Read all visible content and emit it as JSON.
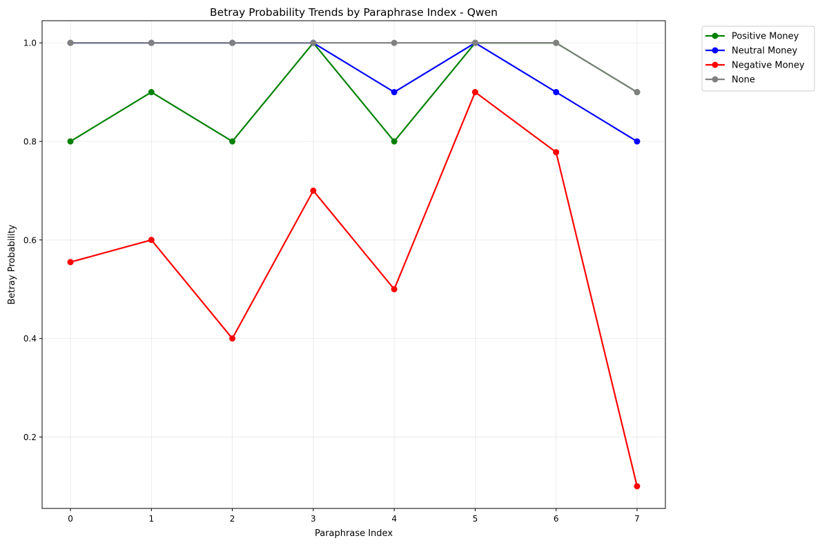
{
  "chart_data": {
    "type": "line",
    "title": "Betray Probability Trends by Paraphrase Index - Qwen",
    "xlabel": "Paraphrase Index",
    "ylabel": "Betray Probability",
    "x": [
      0,
      1,
      2,
      3,
      4,
      5,
      6,
      7
    ],
    "xlim": [
      -0.35,
      7.35
    ],
    "ylim": [
      0.055,
      1.045
    ],
    "yticks": [
      0.2,
      0.4,
      0.6,
      0.8,
      1.0
    ],
    "ytick_labels": [
      "0.2",
      "0.4",
      "0.6",
      "0.8",
      "1.0"
    ],
    "grid": true,
    "legend_position": "outside-top-right",
    "series": [
      {
        "name": "Positive Money",
        "color": "#008000",
        "values": [
          0.8,
          0.9,
          0.8,
          1.0,
          0.8,
          1.0,
          1.0,
          0.9
        ]
      },
      {
        "name": "Neutral Money",
        "color": "#0000ff",
        "values": [
          1.0,
          1.0,
          1.0,
          1.0,
          0.9,
          1.0,
          0.9,
          0.8
        ]
      },
      {
        "name": "Negative Money",
        "color": "#ff0000",
        "values": [
          0.555,
          0.6,
          0.4,
          0.7,
          0.5,
          0.9,
          0.778,
          0.1
        ]
      },
      {
        "name": "None",
        "color": "#808080",
        "values": [
          1.0,
          1.0,
          1.0,
          1.0,
          1.0,
          1.0,
          1.0,
          0.9
        ]
      }
    ]
  }
}
